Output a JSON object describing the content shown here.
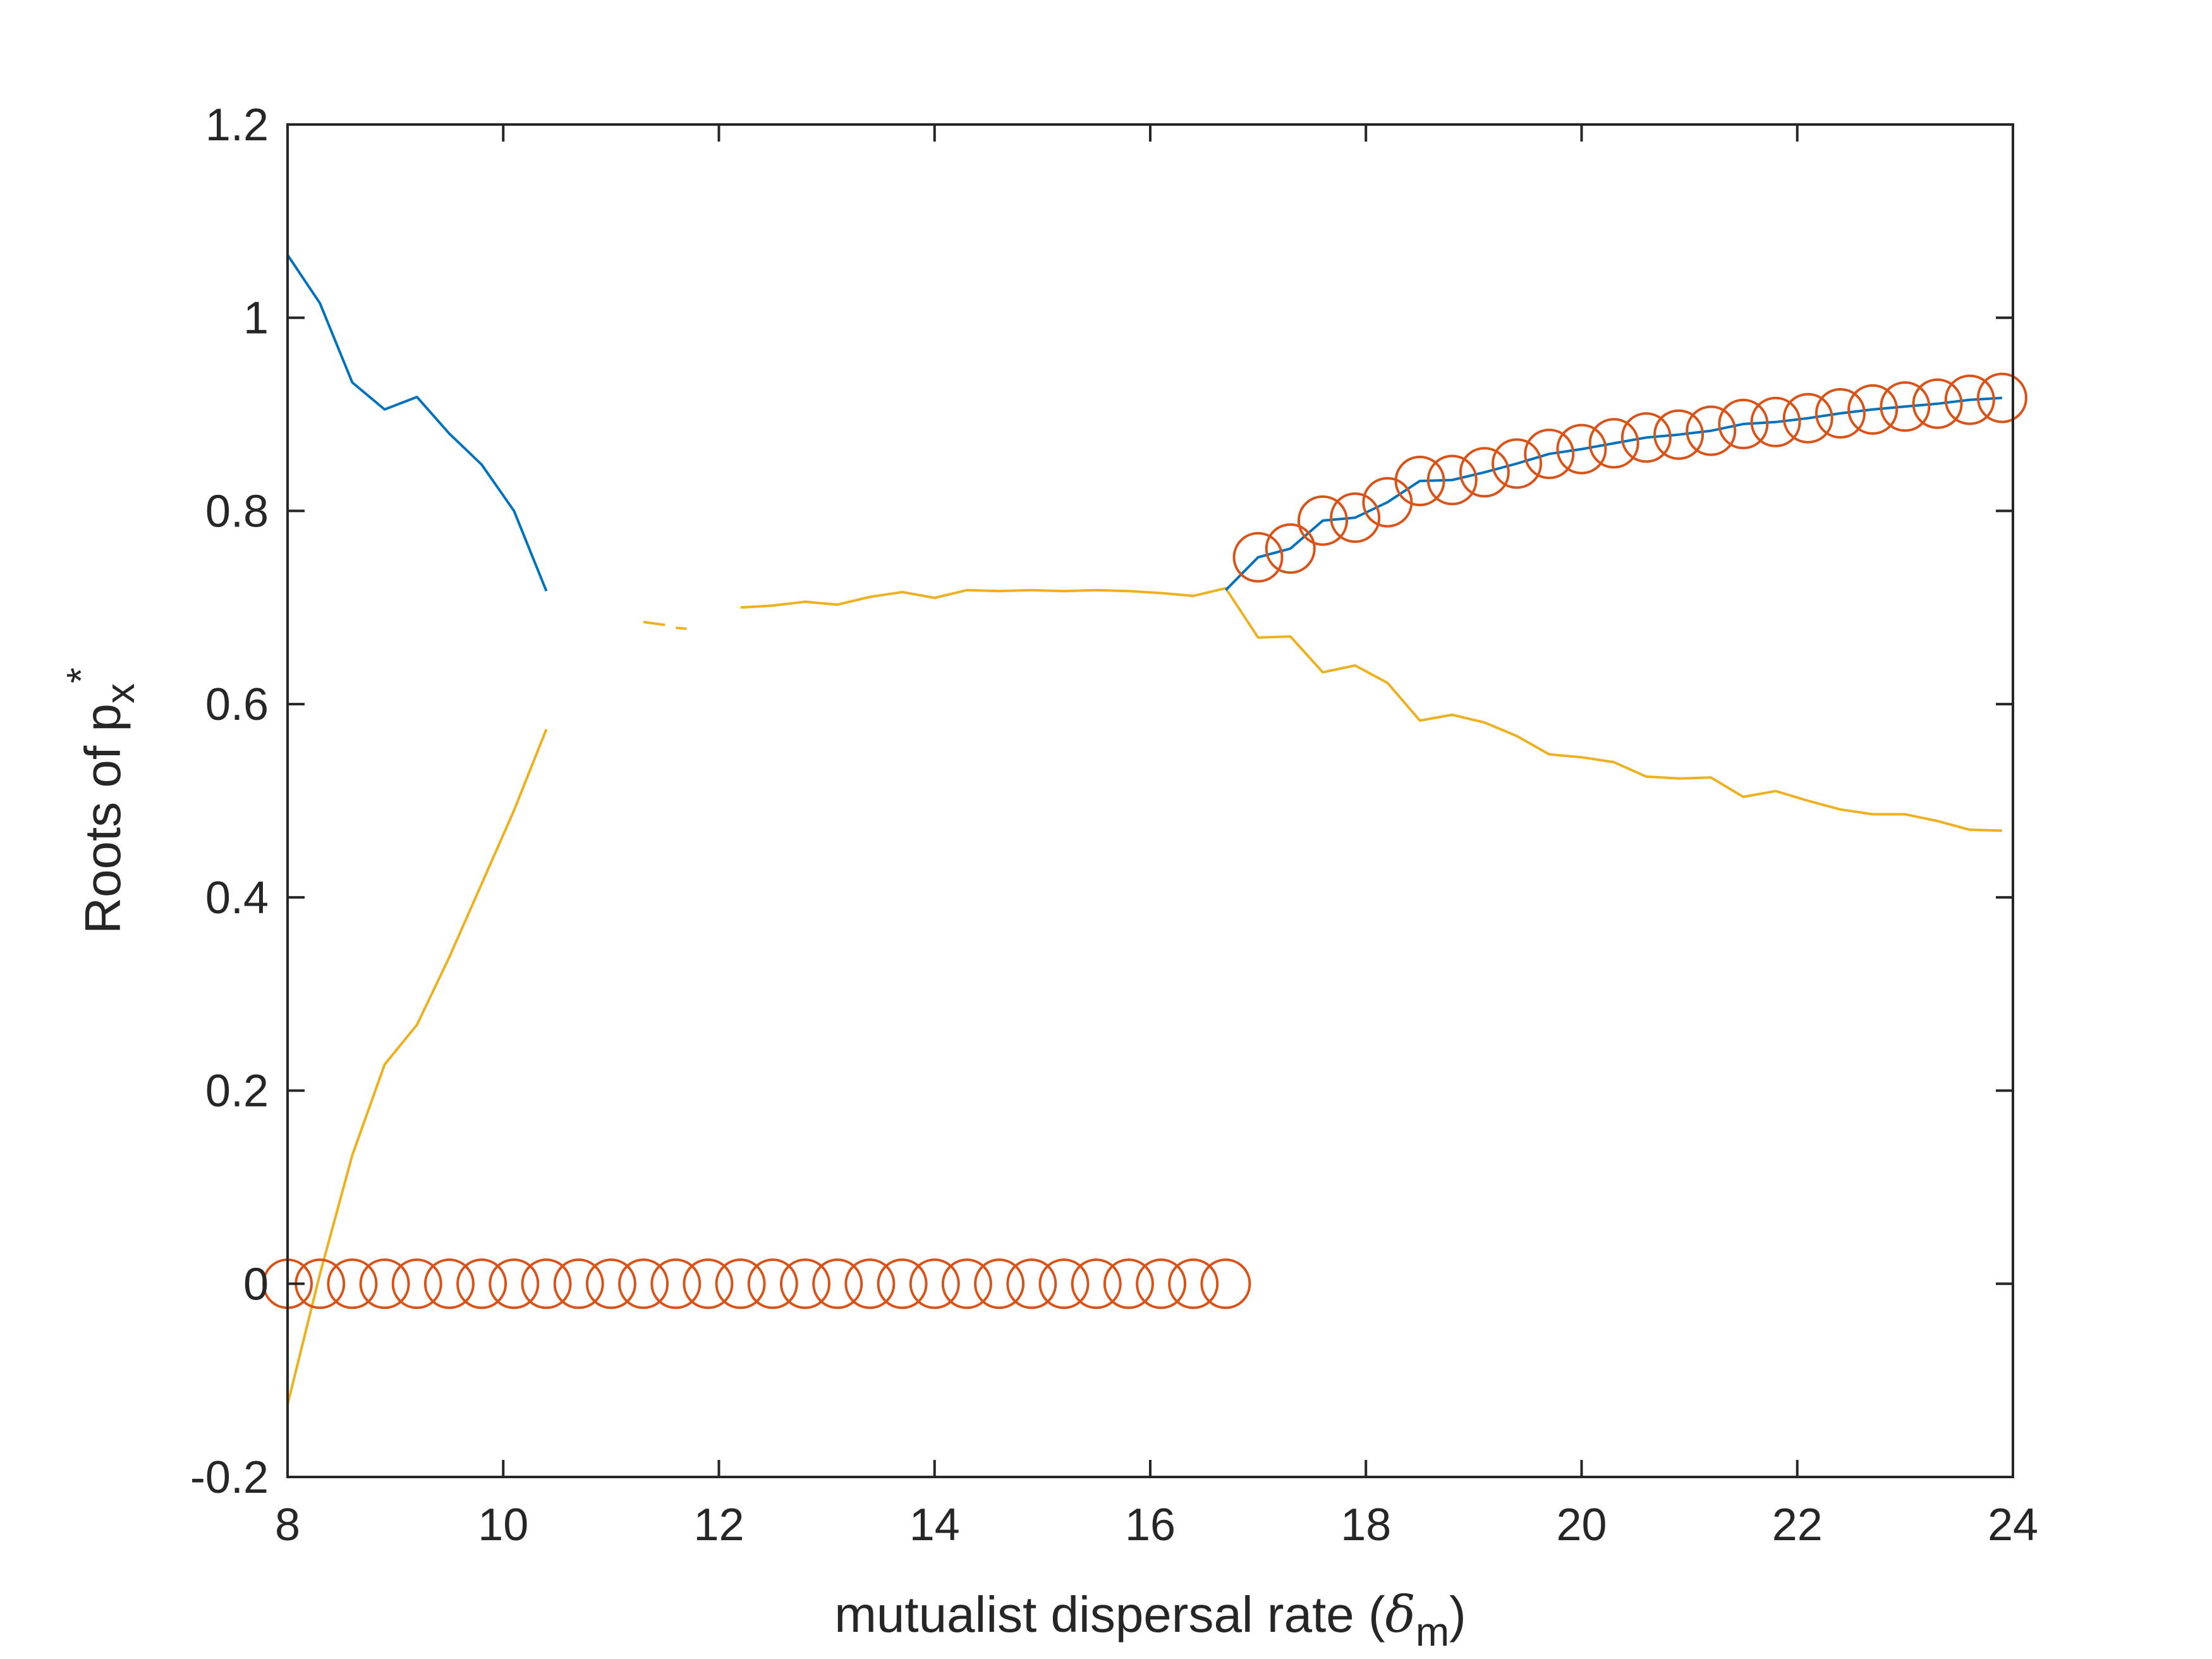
{
  "chart_data": {
    "type": "line",
    "title": "",
    "xlabel": "mutualist dispersal rate (",
    "xlabel_symbol": "δ",
    "xlabel_sub": "m",
    "xlabel_close": ")",
    "ylabel": "Roots of p",
    "ylabel_sub": "x",
    "ylabel_sup": "*",
    "xlim": [
      8,
      24
    ],
    "ylim": [
      -0.2,
      1.2
    ],
    "xticks": [
      "8",
      "10",
      "12",
      "14",
      "16",
      "18",
      "20",
      "22",
      "24"
    ],
    "yticks": [
      "-0.2",
      "0",
      "0.2",
      "0.4",
      "0.6",
      "0.8",
      "1",
      "1.2"
    ],
    "grid": false,
    "colors": {
      "blue": "#0072BD",
      "orange": "#D95319",
      "yellow": "#EDB120",
      "axis": "#262626"
    },
    "series": [
      {
        "color_key": "blue",
        "style": "line",
        "segments": [
          [
            [
              8.0,
              1.065
            ],
            [
              8.3,
              1.015
            ],
            [
              8.6,
              0.933
            ],
            [
              8.9,
              0.905
            ],
            [
              9.2,
              0.918
            ],
            [
              9.5,
              0.88
            ],
            [
              9.8,
              0.848
            ],
            [
              10.1,
              0.8
            ],
            [
              10.4,
              0.717
            ]
          ],
          [
            [
              16.7,
              0.718
            ],
            [
              17.0,
              0.752
            ],
            [
              17.3,
              0.761
            ],
            [
              17.6,
              0.79
            ],
            [
              17.9,
              0.793
            ],
            [
              18.2,
              0.809
            ],
            [
              18.5,
              0.831
            ],
            [
              18.8,
              0.832
            ],
            [
              19.1,
              0.84
            ],
            [
              19.4,
              0.849
            ],
            [
              19.7,
              0.859
            ],
            [
              20.0,
              0.864
            ],
            [
              20.3,
              0.87
            ],
            [
              20.6,
              0.876
            ],
            [
              20.9,
              0.879
            ],
            [
              21.2,
              0.883
            ],
            [
              21.5,
              0.89
            ],
            [
              21.8,
              0.892
            ],
            [
              22.1,
              0.896
            ],
            [
              22.4,
              0.901
            ],
            [
              22.7,
              0.905
            ],
            [
              23.0,
              0.908
            ],
            [
              23.3,
              0.911
            ],
            [
              23.6,
              0.915
            ],
            [
              23.9,
              0.917
            ]
          ]
        ]
      },
      {
        "color_key": "yellow",
        "style": "line",
        "segments": [
          [
            [
              8.0,
              -0.125
            ],
            [
              8.3,
              0.01
            ],
            [
              8.6,
              0.133
            ],
            [
              8.9,
              0.227
            ],
            [
              9.2,
              0.268
            ],
            [
              9.5,
              0.338
            ],
            [
              9.8,
              0.414
            ],
            [
              10.1,
              0.49
            ],
            [
              10.4,
              0.574
            ]
          ],
          [
            [
              11.3,
              0.685
            ],
            [
              11.5,
              0.682
            ]
          ],
          [
            [
              11.6,
              0.679
            ],
            [
              11.7,
              0.678
            ]
          ],
          [
            [
              12.2,
              0.7
            ],
            [
              12.5,
              0.702
            ],
            [
              12.8,
              0.706
            ],
            [
              13.1,
              0.703
            ],
            [
              13.4,
              0.711
            ],
            [
              13.7,
              0.716
            ],
            [
              14.0,
              0.71
            ],
            [
              14.3,
              0.718
            ],
            [
              14.6,
              0.717
            ],
            [
              14.9,
              0.718
            ],
            [
              15.2,
              0.717
            ],
            [
              15.5,
              0.718
            ],
            [
              15.8,
              0.717
            ],
            [
              16.1,
              0.715
            ],
            [
              16.4,
              0.712
            ],
            [
              16.7,
              0.72
            ],
            [
              17.0,
              0.669
            ],
            [
              17.3,
              0.67
            ],
            [
              17.6,
              0.633
            ],
            [
              17.9,
              0.64
            ],
            [
              18.2,
              0.622
            ],
            [
              18.5,
              0.583
            ],
            [
              18.8,
              0.589
            ],
            [
              19.1,
              0.581
            ],
            [
              19.4,
              0.567
            ],
            [
              19.7,
              0.548
            ],
            [
              20.0,
              0.545
            ],
            [
              20.3,
              0.54
            ],
            [
              20.6,
              0.525
            ],
            [
              20.9,
              0.523
            ],
            [
              21.2,
              0.524
            ],
            [
              21.5,
              0.504
            ],
            [
              21.8,
              0.51
            ],
            [
              22.1,
              0.5
            ],
            [
              22.4,
              0.491
            ],
            [
              22.7,
              0.486
            ],
            [
              23.0,
              0.486
            ],
            [
              23.3,
              0.479
            ],
            [
              23.6,
              0.47
            ],
            [
              23.9,
              0.469
            ]
          ]
        ]
      },
      {
        "color_key": "orange",
        "style": "markers",
        "marker": "o",
        "points": [
          [
            8.0,
            0
          ],
          [
            8.3,
            0
          ],
          [
            8.6,
            0
          ],
          [
            8.9,
            0
          ],
          [
            9.2,
            0
          ],
          [
            9.5,
            0
          ],
          [
            9.8,
            0
          ],
          [
            10.1,
            0
          ],
          [
            10.4,
            0
          ],
          [
            10.7,
            0
          ],
          [
            11.0,
            0
          ],
          [
            11.3,
            0
          ],
          [
            11.6,
            0
          ],
          [
            11.9,
            0
          ],
          [
            12.2,
            0
          ],
          [
            12.5,
            0
          ],
          [
            12.8,
            0
          ],
          [
            13.1,
            0
          ],
          [
            13.4,
            0
          ],
          [
            13.7,
            0
          ],
          [
            14.0,
            0
          ],
          [
            14.3,
            0
          ],
          [
            14.6,
            0
          ],
          [
            14.9,
            0
          ],
          [
            15.2,
            0
          ],
          [
            15.5,
            0
          ],
          [
            15.8,
            0
          ],
          [
            16.1,
            0
          ],
          [
            16.4,
            0
          ],
          [
            16.7,
            0
          ],
          [
            17.0,
            0.752
          ],
          [
            17.3,
            0.761
          ],
          [
            17.6,
            0.79
          ],
          [
            17.9,
            0.793
          ],
          [
            18.2,
            0.809
          ],
          [
            18.5,
            0.831
          ],
          [
            18.8,
            0.832
          ],
          [
            19.1,
            0.84
          ],
          [
            19.4,
            0.849
          ],
          [
            19.7,
            0.859
          ],
          [
            20.0,
            0.864
          ],
          [
            20.3,
            0.87
          ],
          [
            20.6,
            0.876
          ],
          [
            20.9,
            0.879
          ],
          [
            21.2,
            0.883
          ],
          [
            21.5,
            0.89
          ],
          [
            21.8,
            0.892
          ],
          [
            22.1,
            0.896
          ],
          [
            22.4,
            0.901
          ],
          [
            22.7,
            0.905
          ],
          [
            23.0,
            0.908
          ],
          [
            23.3,
            0.911
          ],
          [
            23.6,
            0.915
          ],
          [
            23.9,
            0.917
          ]
        ]
      }
    ]
  }
}
